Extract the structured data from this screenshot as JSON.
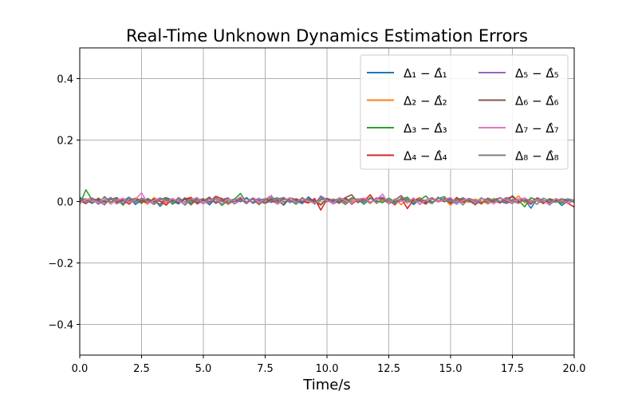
{
  "chart_data": {
    "type": "line",
    "title": "Real-Time Unknown Dynamics Estimation Errors",
    "xlabel": "Time/s",
    "ylabel": "",
    "xlim": [
      0,
      20
    ],
    "ylim": [
      -0.5,
      0.5
    ],
    "x_ticks": [
      "0.0",
      "2.5",
      "5.0",
      "7.5",
      "10.0",
      "12.5",
      "15.0",
      "17.5",
      "20.0"
    ],
    "y_ticks": [
      "−0.4",
      "−0.2",
      "0.0",
      "0.2",
      "0.4"
    ],
    "grid": true,
    "legend_position": "top-right",
    "legend_columns": 2,
    "x_step": 0.25,
    "series": [
      {
        "name": "Δ₁ − Δ̂₁",
        "color": "#1f77b4",
        "values": [
          0.013,
          0.004,
          -0.006,
          0.008,
          -0.003,
          0.011,
          -0.007,
          0.002,
          0.014,
          -0.01,
          0.005,
          -0.002,
          0.009,
          -0.016,
          0.006,
          0.001,
          -0.008,
          0.012,
          0.003,
          -0.004,
          0.007,
          -0.011,
          0.01,
          0.002,
          -0.005,
          0.008,
          -0.001,
          0.013,
          -0.006,
          0.004,
          0.009,
          -0.003,
          0.006,
          -0.012,
          0.011,
          0.002,
          -0.007,
          0.015,
          -0.002,
          0.005,
          0.01,
          -0.008,
          0.003,
          0.012,
          -0.004,
          0.007,
          -0.009,
          0.013,
          0.001,
          -0.003,
          0.011,
          -0.006,
          0.004,
          0.009,
          -0.01,
          0.006,
          0.002,
          -0.005,
          0.014,
          -0.001,
          0.008,
          -0.007,
          0.003,
          0.01,
          -0.004,
          0.012,
          -0.008,
          0.005,
          0.001,
          -0.006,
          0.019,
          -0.002,
          0.007,
          -0.022,
          0.009,
          0.004,
          -0.011,
          0.006,
          -0.013,
          0.003,
          0.005
        ]
      },
      {
        "name": "Δ₂ − Δ̂₂",
        "color": "#ff7f0e",
        "values": [
          -0.004,
          0.006,
          0.012,
          -0.005,
          0.003,
          0.009,
          -0.008,
          0.011,
          -0.002,
          0.007,
          0.004,
          -0.009,
          0.013,
          0.001,
          -0.006,
          0.01,
          -0.003,
          0.008,
          0.014,
          -0.007,
          0.002,
          0.009,
          -0.004,
          0.011,
          -0.01,
          0.005,
          0.007,
          -0.002,
          0.012,
          -0.006,
          0.003,
          0.008,
          -0.009,
          0.01,
          0.001,
          -0.005,
          0.013,
          -0.003,
          0.006,
          -0.008,
          0.009,
          0.002,
          0.011,
          -0.006,
          0.004,
          -0.001,
          0.01,
          -0.007,
          0.012,
          0.003,
          -0.004,
          0.008,
          -0.01,
          0.006,
          0.002,
          0.013,
          -0.005,
          0.009,
          -0.002,
          0.007,
          -0.012,
          0.011,
          0.004,
          -0.003,
          0.008,
          0.001,
          -0.007,
          0.01,
          -0.004,
          0.006,
          0.002,
          0.018,
          -0.005,
          0.012,
          0.003,
          -0.006,
          0.009,
          0.004,
          -0.002,
          0.007,
          0.001
        ]
      },
      {
        "name": "Δ₃ − Δ̂₃",
        "color": "#2ca02c",
        "values": [
          -0.01,
          0.038,
          0.005,
          -0.008,
          0.016,
          -0.003,
          0.009,
          -0.012,
          0.012,
          0.004,
          -0.006,
          0.01,
          -0.002,
          0.006,
          0.013,
          -0.009,
          0.003,
          0.008,
          -0.005,
          0.011,
          -0.007,
          0.002,
          0.009,
          -0.013,
          0.004,
          0.007,
          0.026,
          -0.004,
          0.01,
          0.001,
          -0.006,
          0.008,
          0.012,
          -0.003,
          0.005,
          -0.009,
          0.011,
          0.002,
          -0.005,
          0.013,
          0.004,
          -0.007,
          0.009,
          -0.002,
          0.012,
          0.006,
          -0.008,
          0.01,
          0.003,
          -0.004,
          0.011,
          -0.001,
          0.008,
          0.014,
          -0.006,
          0.005,
          0.018,
          -0.003,
          0.009,
          0.016,
          -0.007,
          0.004,
          0.012,
          0.001,
          -0.005,
          0.01,
          -0.002,
          0.007,
          0.011,
          -0.004,
          0.006,
          0.003,
          -0.017,
          0.012,
          0.005,
          -0.003,
          0.009,
          0.002,
          -0.006,
          0.008,
          0.004
        ]
      },
      {
        "name": "Δ₄ − Δ̂₄",
        "color": "#d62728",
        "values": [
          0.002,
          -0.007,
          0.009,
          0.004,
          -0.011,
          0.013,
          -0.002,
          0.006,
          -0.009,
          0.011,
          0.003,
          -0.005,
          0.008,
          0.001,
          -0.012,
          0.01,
          -0.004,
          0.007,
          0.012,
          -0.008,
          0.005,
          -0.001,
          0.017,
          0.009,
          -0.006,
          0.002,
          0.011,
          -0.003,
          0.008,
          -0.01,
          0.006,
          0.004,
          -0.007,
          0.013,
          -0.002,
          0.009,
          0.001,
          -0.005,
          0.01,
          -0.028,
          0.007,
          0.003,
          -0.004,
          0.011,
          -0.009,
          0.006,
          0.002,
          0.022,
          -0.006,
          0.008,
          0.003,
          -0.011,
          0.012,
          -0.023,
          0.005,
          0.009,
          -0.004,
          0.007,
          0.001,
          0.01,
          -0.006,
          0.013,
          -0.003,
          0.008,
          0.002,
          -0.008,
          0.011,
          0.004,
          -0.005,
          0.009,
          0.016,
          -0.002,
          0.006,
          -0.009,
          0.012,
          0.003,
          -0.004,
          0.008,
          0.001,
          -0.006,
          -0.018
        ]
      },
      {
        "name": "Δ₅ − Δ̂₅",
        "color": "#9467bd",
        "values": [
          0.006,
          -0.003,
          0.01,
          -0.009,
          0.004,
          0.012,
          -0.006,
          0.002,
          0.009,
          -0.004,
          0.011,
          0.005,
          -0.01,
          0.007,
          0.001,
          -0.005,
          0.013,
          -0.002,
          0.008,
          0.003,
          -0.007,
          0.01,
          -0.001,
          0.006,
          0.012,
          -0.008,
          0.004,
          0.009,
          -0.003,
          0.011,
          -0.006,
          0.002,
          0.008,
          0.013,
          -0.004,
          0.007,
          0.001,
          0.01,
          -0.009,
          0.018,
          0.005,
          -0.002,
          0.012,
          0.006,
          -0.007,
          0.009,
          0.003,
          -0.004,
          0.011,
          0.014,
          -0.006,
          0.008,
          0.002,
          -0.003,
          0.01,
          -0.008,
          0.005,
          0.012,
          -0.001,
          0.007,
          0.003,
          -0.009,
          0.011,
          0.004,
          -0.005,
          0.009,
          0.006,
          -0.002,
          0.012,
          -0.007,
          0.003,
          0.008,
          0.001,
          -0.004,
          0.01,
          0.005,
          -0.008,
          0.006,
          0.002,
          0.009,
          -0.003
        ]
      },
      {
        "name": "Δ₆ − Δ̂₆",
        "color": "#8c564b",
        "values": [
          0.004,
          0.009,
          -0.005,
          0.011,
          -0.002,
          0.006,
          0.013,
          -0.008,
          0.003,
          0.01,
          -0.004,
          0.007,
          0.001,
          -0.009,
          0.012,
          0.005,
          -0.003,
          0.008,
          -0.011,
          0.009,
          0.002,
          0.014,
          -0.006,
          0.004,
          0.01,
          -0.001,
          0.007,
          -0.007,
          0.011,
          0.003,
          -0.005,
          0.009,
          0.001,
          -0.01,
          0.012,
          0.006,
          -0.003,
          0.008,
          0.002,
          -0.012,
          0.01,
          0.004,
          -0.006,
          0.013,
          0.022,
          -0.004,
          0.009,
          -0.002,
          0.007,
          0.011,
          -0.008,
          0.005,
          0.019,
          -0.005,
          0.008,
          0.002,
          -0.009,
          0.012,
          -0.001,
          0.006,
          0.01,
          -0.004,
          0.007,
          0.003,
          -0.011,
          0.009,
          0.005,
          -0.002,
          0.013,
          0.001,
          -0.006,
          0.008,
          0.004,
          -0.003,
          0.011,
          -0.007,
          0.006,
          0.002,
          0.009,
          -0.005,
          0.003
        ]
      },
      {
        "name": "Δ₇ − Δ̂₇",
        "color": "#e377c2",
        "values": [
          -0.006,
          0.008,
          0.002,
          -0.004,
          0.011,
          -0.009,
          0.005,
          0.01,
          -0.003,
          0.007,
          0.028,
          -0.006,
          0.004,
          0.012,
          -0.002,
          0.009,
          0.001,
          -0.008,
          0.006,
          0.013,
          -0.005,
          0.003,
          0.01,
          -0.007,
          0.008,
          0.002,
          0.015,
          -0.004,
          0.011,
          -0.001,
          0.007,
          0.02,
          -0.009,
          0.005,
          0.012,
          -0.003,
          0.009,
          0.001,
          -0.006,
          0.01,
          0.004,
          -0.008,
          0.013,
          0.002,
          -0.005,
          0.008,
          0.011,
          -0.002,
          0.006,
          0.024,
          -0.007,
          0.009,
          0.003,
          -0.004,
          0.012,
          -0.01,
          0.005,
          0.008,
          -0.001,
          0.007,
          0.013,
          -0.006,
          0.004,
          0.01,
          -0.003,
          0.009,
          0.002,
          -0.008,
          0.011,
          0.005,
          -0.004,
          0.007,
          0.012,
          -0.002,
          0.006,
          0.001,
          -0.009,
          0.01,
          0.003,
          -0.005,
          0.008
        ]
      },
      {
        "name": "Δ₈ − Δ̂₈",
        "color": "#7f7f7f",
        "values": [
          0.01,
          -0.004,
          0.007,
          0.001,
          -0.01,
          0.009,
          0.004,
          -0.006,
          0.012,
          -0.002,
          0.008,
          0.003,
          -0.008,
          0.011,
          0.005,
          -0.003,
          0.009,
          -0.012,
          0.006,
          0.002,
          0.01,
          -0.005,
          0.013,
          0.001,
          -0.007,
          0.008,
          0.004,
          -0.002,
          0.011,
          -0.009,
          0.006,
          0.014,
          -0.003,
          0.007,
          0.002,
          -0.006,
          0.01,
          0.005,
          -0.004,
          0.012,
          -0.001,
          0.008,
          0.003,
          -0.01,
          0.009,
          0.006,
          -0.002,
          0.013,
          -0.005,
          0.007,
          0.001,
          -0.008,
          0.011,
          0.004,
          -0.003,
          0.009,
          0.002,
          -0.007,
          0.012,
          0.006,
          -0.001,
          0.008,
          -0.011,
          0.01,
          0.003,
          -0.004,
          0.009,
          0.005,
          -0.002,
          0.013,
          0.001,
          -0.006,
          0.007,
          0.004,
          -0.009,
          0.011,
          0.002,
          -0.003,
          0.008,
          0.006,
          -0.001
        ]
      }
    ]
  }
}
